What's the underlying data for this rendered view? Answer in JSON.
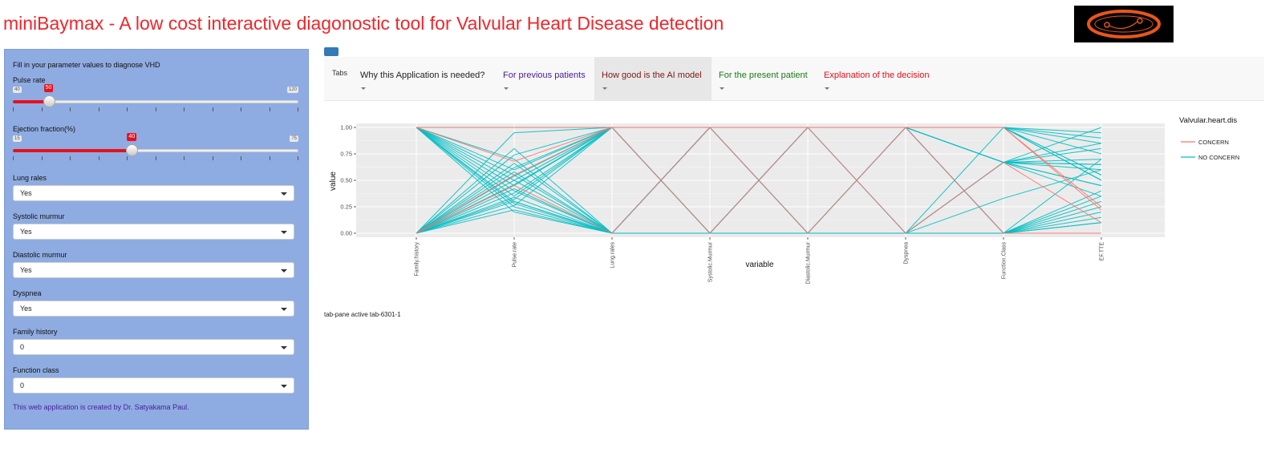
{
  "app": {
    "title": "miniBaymax - A low cost interactive diagonostic tool for Valvular Heart Disease detection",
    "title_color": "#f0262b"
  },
  "sidebar": {
    "intro": "Fill in your parameter values to diagnose VHD",
    "pulse": {
      "label": "Pulse rate",
      "min": "40",
      "max": "120",
      "value": "50",
      "min_num": 40,
      "max_num": 120,
      "value_num": 50
    },
    "ef": {
      "label": "Ejection fraction(%)",
      "min": "15",
      "max": "75",
      "value": "40",
      "min_num": 15,
      "max_num": 75,
      "value_num": 40
    },
    "lung": {
      "label": "Lung rales",
      "value": "Yes"
    },
    "systolic": {
      "label": "Systolic murmur",
      "value": "Yes"
    },
    "diastolic": {
      "label": "Diastolic murmur",
      "value": "Yes"
    },
    "dyspnea": {
      "label": "Dyspnea",
      "value": "Yes"
    },
    "family": {
      "label": "Family history",
      "value": "0"
    },
    "function": {
      "label": "Function class",
      "value": "0"
    },
    "credit": "This web application is created by Dr. Satyakama Paul."
  },
  "tabs": {
    "brand": "Tabs",
    "items": [
      {
        "label": "Why this Application is needed?",
        "color": "#222222",
        "active": false
      },
      {
        "label": "For previous patients",
        "color": "#4b1b9a",
        "active": false
      },
      {
        "label": "How good is the AI model",
        "color": "#7a1a1a",
        "active": true
      },
      {
        "label": "For the present patient",
        "color": "#1b7a1b",
        "active": false
      },
      {
        "label": "Explanation of the decision",
        "color": "#e0101a",
        "active": false
      }
    ]
  },
  "tab_status": "tab-pane active tab-6301-1",
  "chart_data": {
    "type": "line",
    "subtype": "parallel-coordinates",
    "xlabel": "variable",
    "ylabel": "value",
    "ylim": [
      0,
      1
    ],
    "y_ticks": [
      "0.00",
      "0.25",
      "0.50",
      "0.75",
      "1.00"
    ],
    "categories": [
      "Family.history",
      "Pulse.rate",
      "Lung.rales",
      "Systolic.Murmur",
      "Diastolic.Murmur",
      "Dyspnea",
      "Function.Class",
      "EF.TTE"
    ],
    "legend_title": "Valvular.heart.dis",
    "legend_position": "right",
    "grid": true,
    "series": [
      {
        "name": "CONCERN",
        "color": "#f8766d",
        "lines": [
          [
            1,
            1,
            1,
            1,
            1,
            1,
            1,
            0.22
          ],
          [
            1,
            0.68,
            1,
            0,
            1,
            0,
            0.67,
            0.1
          ],
          [
            0,
            0.55,
            1,
            1,
            1,
            1,
            1,
            0.25
          ],
          [
            0,
            0.45,
            0,
            1,
            0,
            1,
            0,
            0.0
          ]
        ]
      },
      {
        "name": "NO CONCERN",
        "color": "#00bfc4",
        "lines": [
          [
            1,
            0.2,
            0,
            1,
            1,
            1,
            1,
            0.55
          ],
          [
            1,
            0.25,
            0,
            1,
            1,
            1,
            0.67,
            0.6
          ],
          [
            1,
            0.3,
            0,
            0,
            0,
            0,
            0,
            0.1
          ],
          [
            1,
            0.35,
            1,
            1,
            1,
            1,
            1,
            0.85
          ],
          [
            1,
            0.4,
            0,
            0,
            1,
            1,
            0.67,
            0.45
          ],
          [
            1,
            0.5,
            1,
            1,
            0,
            0,
            0,
            0.3
          ],
          [
            1,
            0.55,
            0,
            0,
            0,
            1,
            1,
            0.75
          ],
          [
            1,
            0.6,
            1,
            0,
            0,
            0,
            0.67,
            0.65
          ],
          [
            1,
            0.7,
            0,
            1,
            1,
            0,
            0,
            0.2
          ],
          [
            1,
            1.0,
            1,
            1,
            1,
            1,
            1,
            0.95
          ],
          [
            0,
            0.22,
            0,
            0,
            0,
            0,
            0,
            0.7
          ],
          [
            0,
            0.26,
            1,
            1,
            1,
            1,
            0.67,
            0.8
          ],
          [
            0,
            0.3,
            0,
            0,
            1,
            1,
            1,
            0.5
          ],
          [
            0,
            0.34,
            0,
            0,
            0,
            0,
            0.67,
            0.35
          ],
          [
            0,
            0.38,
            1,
            1,
            1,
            1,
            1,
            0.9
          ],
          [
            0,
            0.42,
            0,
            1,
            1,
            1,
            0,
            0.15
          ],
          [
            0,
            0.46,
            1,
            0,
            0,
            0,
            0.33,
            0.6
          ],
          [
            0,
            0.5,
            0,
            0,
            1,
            1,
            0.67,
            1.0
          ],
          [
            0,
            0.54,
            1,
            1,
            0,
            0,
            0,
            0.4
          ],
          [
            0,
            0.58,
            0,
            1,
            1,
            1,
            1,
            0.55
          ],
          [
            0,
            0.62,
            1,
            0,
            0,
            0,
            0.67,
            0.7
          ],
          [
            0,
            0.66,
            0,
            0,
            0,
            1,
            0,
            0.25
          ],
          [
            0,
            0.74,
            1,
            1,
            1,
            1,
            0.67,
            0.85
          ],
          [
            0,
            0.8,
            0,
            0,
            0,
            0,
            1,
            0.5
          ],
          [
            0,
            0.95,
            1,
            1,
            1,
            1,
            0,
            0.1
          ],
          [
            1,
            0.28,
            0,
            1,
            0,
            1,
            0.67,
            0.45
          ],
          [
            0,
            0.32,
            1,
            0,
            1,
            0,
            0,
            0.35
          ],
          [
            1,
            0.45,
            1,
            1,
            1,
            1,
            0.67,
            0.65
          ]
        ]
      }
    ]
  }
}
